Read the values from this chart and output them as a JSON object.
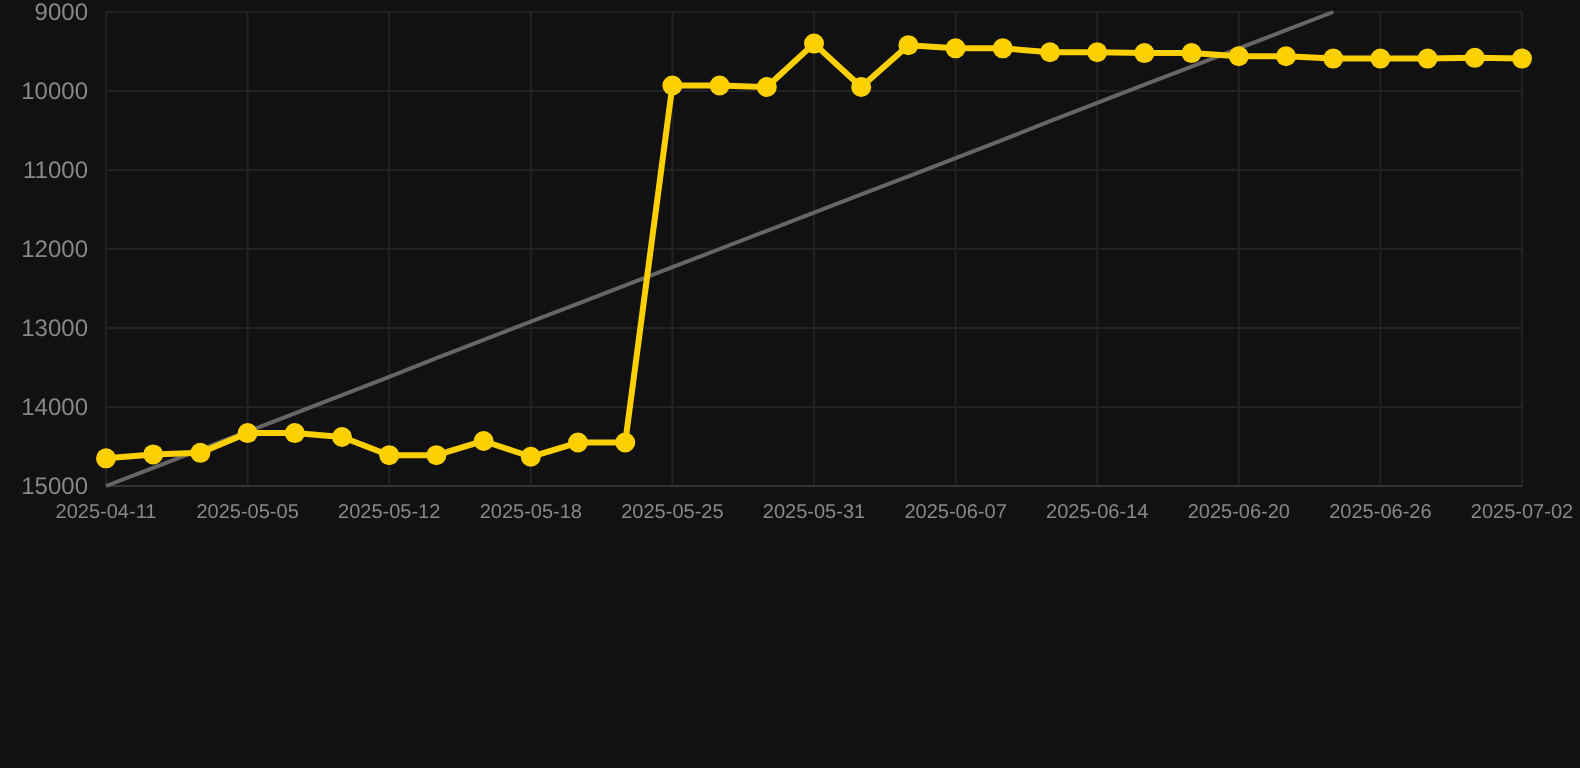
{
  "chart_data": {
    "type": "line",
    "categories": [
      "2025-04-11",
      null,
      null,
      "2025-05-05",
      null,
      null,
      "2025-05-12",
      null,
      null,
      "2025-05-18",
      null,
      null,
      "2025-05-25",
      null,
      null,
      "2025-05-31",
      null,
      null,
      "2025-06-07",
      null,
      null,
      "2025-06-14",
      null,
      null,
      "2025-06-20",
      null,
      null,
      "2025-06-26",
      null,
      null,
      "2025-07-02"
    ],
    "series": [
      {
        "color": "#ffd000",
        "marker": "circle",
        "values": [
          14650,
          14600,
          14580,
          14330,
          14330,
          14380,
          14610,
          14610,
          14430,
          14630,
          14450,
          14450,
          9930,
          9930,
          9950,
          9400,
          9950,
          9420,
          9460,
          9460,
          9510,
          9510,
          9520,
          9520,
          9560,
          9560,
          9590,
          9590,
          9590,
          9580,
          9590
        ]
      },
      {
        "color": "#666666",
        "marker": "none",
        "values": [
          15000,
          14770,
          14540,
          14310,
          14080,
          13850,
          13620,
          13380,
          13150,
          12920,
          12690,
          12460,
          12230,
          12000,
          11770,
          11540,
          11310,
          11080,
          10850,
          10620,
          10380,
          10150,
          9920,
          9690,
          9460,
          9230,
          9000,
          null,
          null,
          null,
          null
        ]
      }
    ],
    "ylim": [
      15000,
      9000
    ],
    "yticks": [
      15000,
      14000,
      13000,
      12000,
      11000,
      10000,
      9000
    ],
    "grid": true
  }
}
